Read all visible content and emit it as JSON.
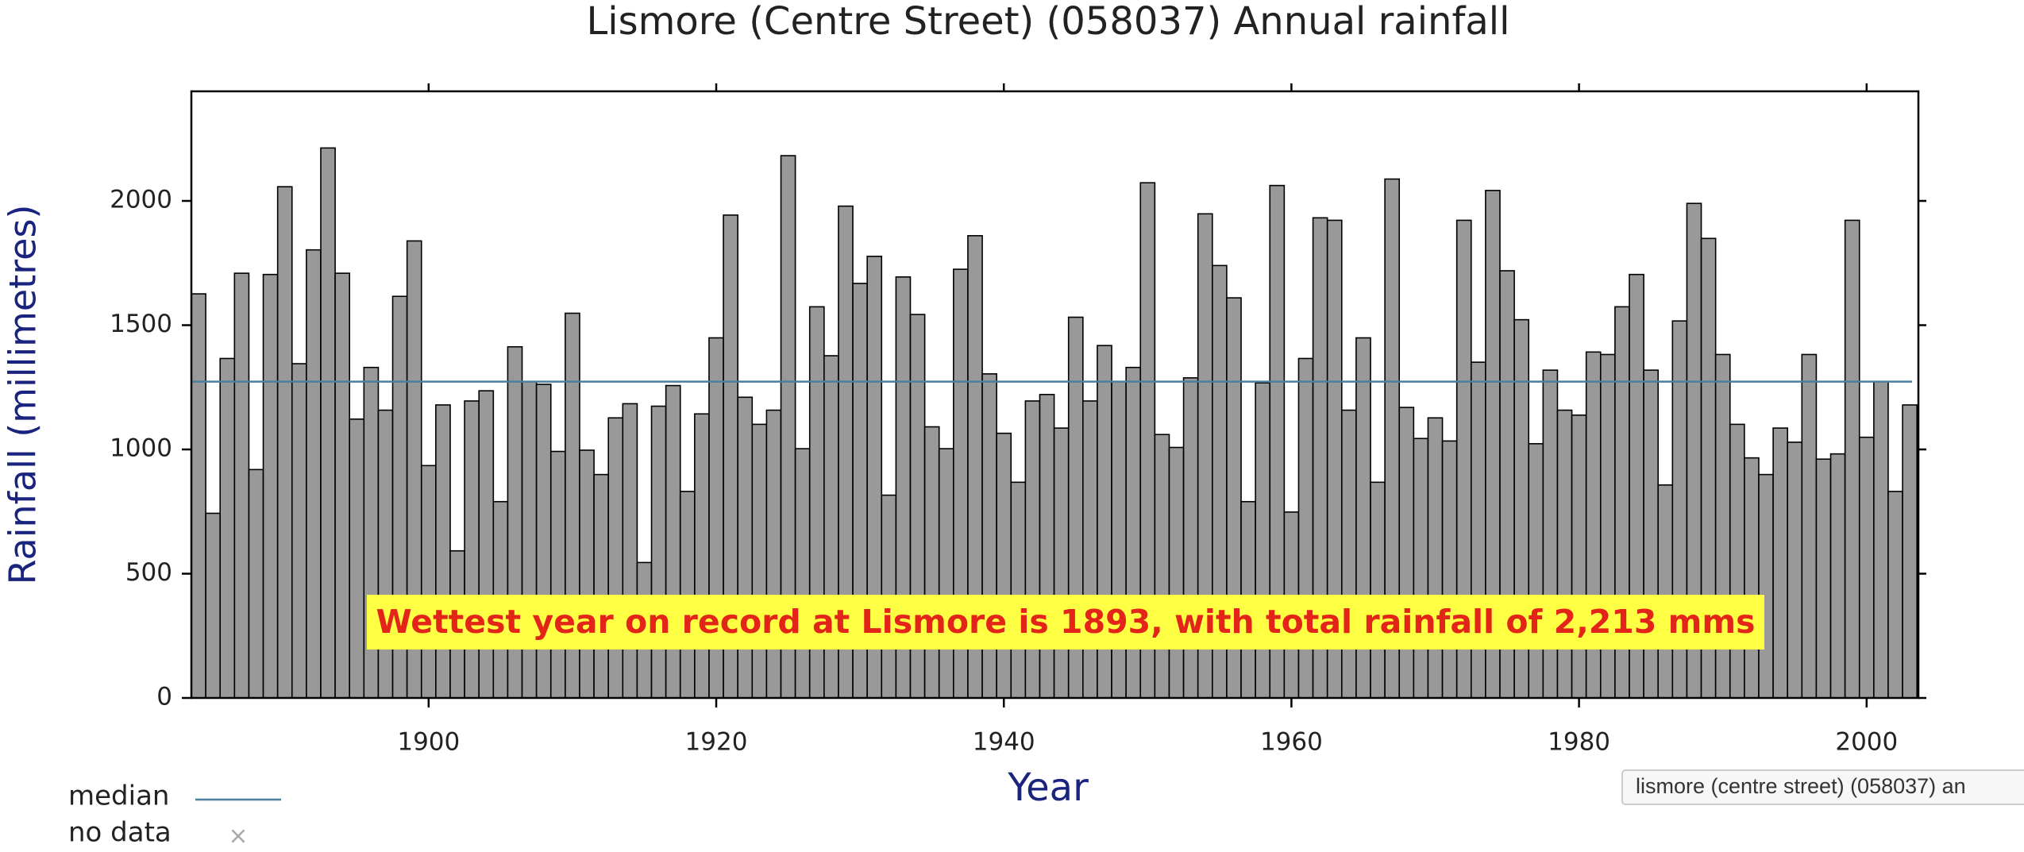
{
  "chart_data": {
    "type": "bar",
    "title": "Lismore (Centre Street) (058037) Annual rainfall",
    "x_label": "Year",
    "y_label": "Rainfall (millimetres)",
    "x": [
      1884,
      1885,
      1886,
      1887,
      1888,
      1889,
      1890,
      1891,
      1892,
      1893,
      1894,
      1895,
      1896,
      1897,
      1898,
      1899,
      1900,
      1901,
      1902,
      1903,
      1904,
      1905,
      1906,
      1907,
      1908,
      1909,
      1910,
      1911,
      1912,
      1913,
      1914,
      1915,
      1916,
      1917,
      1918,
      1919,
      1920,
      1921,
      1922,
      1923,
      1924,
      1925,
      1926,
      1927,
      1928,
      1929,
      1930,
      1931,
      1932,
      1933,
      1934,
      1935,
      1936,
      1937,
      1938,
      1939,
      1940,
      1941,
      1942,
      1943,
      1944,
      1945,
      1946,
      1947,
      1948,
      1949,
      1950,
      1951,
      1952,
      1953,
      1954,
      1955,
      1956,
      1957,
      1958,
      1959,
      1960,
      1961,
      1962,
      1963,
      1964,
      1965,
      1966,
      1967,
      1968,
      1969,
      1970,
      1971,
      1972,
      1973,
      1974,
      1975,
      1976,
      1977,
      1978,
      1979,
      1980,
      1981,
      1982,
      1983,
      1984,
      1985,
      1986,
      1987,
      1988,
      1989,
      1990,
      1991,
      1992,
      1993,
      1994,
      1995,
      1996,
      1997,
      1998,
      1999,
      2000,
      2001,
      2002,
      2003
    ],
    "values": [
      1626,
      743,
      1366,
      1709,
      919,
      1704,
      2057,
      1345,
      1803,
      2213,
      1709,
      1122,
      1330,
      1158,
      1616,
      1839,
      935,
      1179,
      592,
      1195,
      1236,
      790,
      1413,
      1273,
      1262,
      992,
      1548,
      997,
      899,
      1127,
      1184,
      545,
      1174,
      1257,
      831,
      1143,
      1449,
      1943,
      1210,
      1101,
      1158,
      2182,
      1003,
      1574,
      1377,
      1979,
      1668,
      1777,
      816,
      1694,
      1543,
      1091,
      1003,
      1725,
      1860,
      1304,
      1065,
      868,
      1195,
      1221,
      1086,
      1532,
      1195,
      1418,
      1273,
      1330,
      2073,
      1060,
      1008,
      1288,
      1948,
      1740,
      1610,
      790,
      1268,
      2062,
      748,
      1366,
      1932,
      1922,
      1158,
      1449,
      868,
      2088,
      1169,
      1044,
      1127,
      1034,
      1922,
      1351,
      2042,
      1719,
      1522,
      1023,
      1319,
      1158,
      1138,
      1392,
      1382,
      1574,
      1704,
      1319,
      857,
      1517,
      1990,
      1849,
      1382,
      1101,
      966,
      899,
      1086,
      1029,
      1382,
      961,
      982,
      1922,
      1049,
      1273,
      831,
      1179
    ],
    "color": "#999999",
    "xlim": [
      1883.5,
      2003.6
    ],
    "xticks": [
      1900,
      1920,
      1940,
      1960,
      1980,
      2000
    ],
    "ylim": [
      0,
      2441
    ],
    "yticks": [
      0,
      500,
      1000,
      1500,
      2000
    ],
    "median": {
      "label": "median",
      "value": 1273,
      "color": "#4a7fa0"
    },
    "no_data_label": "no data",
    "annotation": "Wettest year on record at Lismore is 1893, with total rainfall of 2,213 mms",
    "tooltip": "lismore (centre street) (058037) an"
  }
}
